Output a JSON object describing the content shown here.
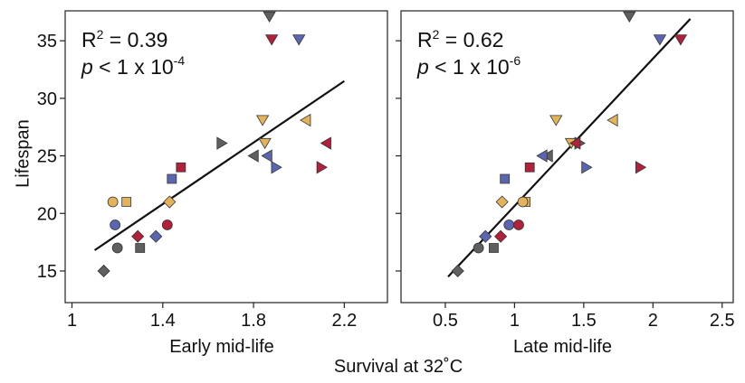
{
  "shared": {
    "ylabel": "Lifespan",
    "xlabel": "Survival at 32˚C"
  },
  "chart_data": [
    {
      "type": "scatter",
      "xlabel": "Early mid-life",
      "annotations": [
        [
          "R",
          "2",
          " = 0.39"
        ],
        [
          "p",
          " < 1 x 10",
          "-4"
        ]
      ],
      "xlim": [
        0.97,
        2.39
      ],
      "ylim": [
        12.25,
        37.6
      ],
      "xticks": [
        1,
        1.4,
        1.8,
        2.2
      ],
      "yticks": [
        15,
        20,
        25,
        30,
        35
      ],
      "show_ytick_labels": true,
      "fit": {
        "x": [
          1.1,
          2.2
        ],
        "y": [
          16.8,
          31.5
        ]
      },
      "x": [
        1.87,
        1.88,
        2.0,
        1.84,
        2.03,
        1.85,
        1.66,
        2.12,
        1.8,
        1.86,
        1.9,
        2.1,
        1.48,
        1.44,
        1.24,
        1.43,
        1.18,
        1.19,
        1.42,
        1.29,
        1.37,
        1.2,
        1.3,
        1.14
      ],
      "y": [
        37.1,
        35.1,
        35.1,
        28.1,
        28.1,
        26.1,
        26.1,
        26.1,
        25.0,
        25.0,
        24.0,
        24.0,
        24.0,
        23.0,
        21.0,
        21.0,
        21.0,
        19.0,
        19.0,
        18.0,
        18.0,
        17.0,
        17.0,
        15.0
      ],
      "marker": [
        "tri-down",
        "tri-down",
        "tri-down",
        "tri-down",
        "tri-left",
        "tri-down",
        "tri-right",
        "tri-left",
        "tri-left",
        "tri-left",
        "tri-right",
        "tri-right",
        "square",
        "square",
        "square",
        "diamond",
        "circle",
        "circle",
        "circle",
        "diamond",
        "diamond",
        "circle",
        "square",
        "diamond"
      ],
      "color": [
        "#5f5f5f",
        "#b3203a",
        "#5b66b3",
        "#e3b35b",
        "#e3b35b",
        "#e3b35b",
        "#5f5f5f",
        "#b3203a",
        "#5f5f5f",
        "#5b66b3",
        "#5b66b3",
        "#b3203a",
        "#b3203a",
        "#5b66b3",
        "#e3b35b",
        "#e3b35b",
        "#e3b35b",
        "#5b66b3",
        "#b3203a",
        "#b3203a",
        "#5b66b3",
        "#5f5f5f",
        "#5f5f5f",
        "#5f5f5f"
      ]
    },
    {
      "type": "scatter",
      "xlabel": "Late mid-life",
      "annotations": [
        [
          "R",
          "2",
          " = 0.62"
        ],
        [
          "p",
          " < 1 x 10",
          "-6"
        ]
      ],
      "xlim": [
        0.18,
        2.58
      ],
      "ylim": [
        12.25,
        37.6
      ],
      "xticks": [
        0.5,
        1,
        1.5,
        2,
        2.5
      ],
      "yticks": [
        15,
        20,
        25,
        30,
        35
      ],
      "show_ytick_labels": false,
      "fit": {
        "x": [
          0.52,
          2.27
        ],
        "y": [
          14.5,
          36.9
        ]
      },
      "x": [
        1.83,
        2.05,
        2.2,
        1.3,
        1.71,
        1.41,
        1.47,
        1.44,
        1.24,
        1.2,
        1.52,
        1.91,
        1.11,
        0.93,
        1.08,
        0.91,
        1.06,
        0.96,
        1.03,
        0.9,
        0.79,
        0.74,
        0.85,
        0.59
      ],
      "y": [
        37.1,
        35.1,
        35.1,
        28.1,
        28.1,
        26.1,
        26.1,
        26.1,
        25.0,
        25.0,
        24.0,
        24.0,
        24.0,
        23.0,
        21.0,
        21.0,
        21.0,
        19.0,
        19.0,
        18.0,
        18.0,
        17.0,
        17.0,
        15.0
      ],
      "marker": [
        "tri-down",
        "tri-down",
        "tri-down",
        "tri-down",
        "tri-left",
        "tri-down",
        "tri-right",
        "tri-left",
        "tri-left",
        "tri-left",
        "tri-right",
        "tri-right",
        "square",
        "square",
        "square",
        "diamond",
        "circle",
        "circle",
        "circle",
        "diamond",
        "diamond",
        "circle",
        "square",
        "diamond"
      ],
      "color": [
        "#5f5f5f",
        "#5b66b3",
        "#b3203a",
        "#e3b35b",
        "#e3b35b",
        "#e3b35b",
        "#5f5f5f",
        "#b3203a",
        "#5f5f5f",
        "#5b66b3",
        "#5b66b3",
        "#b3203a",
        "#b3203a",
        "#5b66b3",
        "#e3b35b",
        "#e3b35b",
        "#e3b35b",
        "#5b66b3",
        "#b3203a",
        "#b3203a",
        "#5b66b3",
        "#5f5f5f",
        "#5f5f5f",
        "#5f5f5f"
      ]
    }
  ]
}
